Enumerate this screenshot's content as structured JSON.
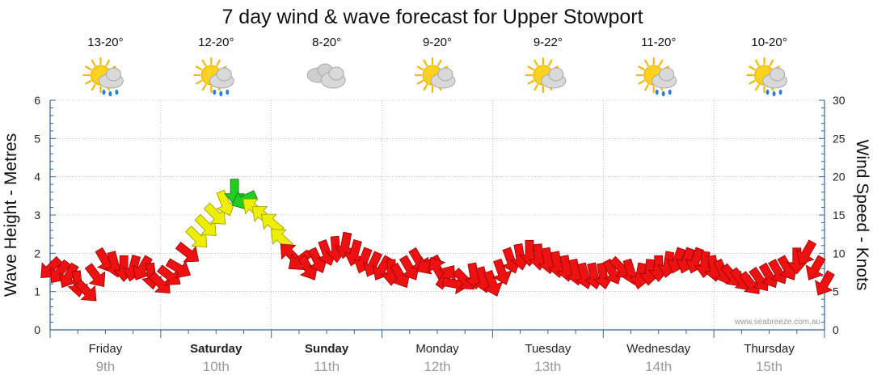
{
  "title": "7 day wind & wave forecast for Upper Stowport",
  "credit": "www.seabreeze.com.au",
  "days": [
    {
      "name": "Friday",
      "date": "9th",
      "bold": false,
      "temp": "13-20°",
      "icon": "sun-cloud-rain-icon"
    },
    {
      "name": "Saturday",
      "date": "10th",
      "bold": true,
      "temp": "12-20°",
      "icon": "sun-cloud-rain-icon"
    },
    {
      "name": "Sunday",
      "date": "11th",
      "bold": true,
      "temp": "8-20°",
      "icon": "cloud-icon"
    },
    {
      "name": "Monday",
      "date": "12th",
      "bold": false,
      "temp": "9-20°",
      "icon": "sun-cloud-icon"
    },
    {
      "name": "Tuesday",
      "date": "13th",
      "bold": false,
      "temp": "9-22°",
      "icon": "sun-cloud-icon"
    },
    {
      "name": "Wednesday",
      "date": "14th",
      "bold": false,
      "temp": "11-20°",
      "icon": "sun-cloud-rain-icon"
    },
    {
      "name": "Thursday",
      "date": "15th",
      "bold": false,
      "temp": "10-20°",
      "icon": "sun-cloud-rain-icon"
    }
  ],
  "chart_data": {
    "type": "scatter",
    "y_left_label": "Wave Height - Metres",
    "y_right_label": "Wind Speed - Knots",
    "y_left_ticks": [
      "0",
      "1",
      "2",
      "3",
      "4",
      "5",
      "6"
    ],
    "y_right_ticks": [
      "0",
      "5",
      "10",
      "15",
      "20",
      "25",
      "30"
    ],
    "y_left_range": [
      0,
      6
    ],
    "y_right_range": [
      0,
      30
    ],
    "grid": true,
    "colors": {
      "low": "#ee1111",
      "mid": "#eeee00",
      "high": "#22cc22",
      "grid": "#999999",
      "axis": "#336699"
    },
    "series": [
      {
        "name": "wind",
        "markers": "arrows",
        "x_hours": [
          0,
          4,
          8,
          12,
          16,
          20,
          24,
          28,
          32,
          36,
          40,
          44,
          48,
          52,
          56,
          60,
          64,
          68,
          72,
          76,
          80,
          84,
          88,
          92,
          96,
          100,
          104,
          108,
          112,
          116,
          120,
          124,
          128,
          132,
          136,
          140,
          144,
          148,
          152,
          156,
          160,
          164,
          168
        ],
        "speed_knots": [
          8,
          7,
          5,
          9,
          8,
          8,
          6,
          8,
          12,
          15,
          18,
          16,
          14,
          10,
          8,
          10,
          11,
          9,
          8,
          7,
          9,
          8,
          6,
          7,
          6,
          9,
          10,
          9,
          8,
          7,
          7,
          8,
          7,
          8,
          9,
          9,
          8,
          7,
          6,
          7,
          8,
          10,
          6
        ],
        "direction_deg": [
          135,
          120,
          45,
          60,
          90,
          120,
          45,
          30,
          45,
          45,
          90,
          220,
          220,
          225,
          60,
          70,
          100,
          110,
          120,
          60,
          60,
          240,
          10,
          80,
          70,
          70,
          90,
          80,
          80,
          75,
          80,
          45,
          100,
          90,
          110,
          110,
          80,
          50,
          50,
          60,
          60,
          120,
          120
        ]
      }
    ]
  }
}
